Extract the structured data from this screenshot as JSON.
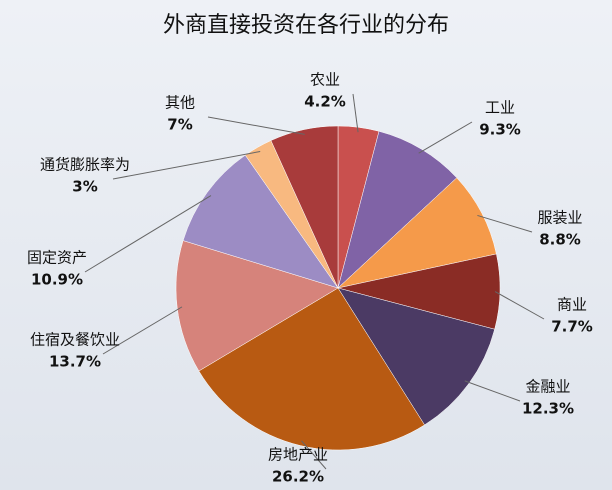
{
  "chart_data": {
    "type": "pie",
    "title": "外商直接投资在各行业的分布",
    "categories": [
      "农业",
      "工业",
      "服装业",
      "商业",
      "金融业",
      "房地产业",
      "住宿及餐饮业",
      "固定资产",
      "通货膨胀率为",
      "其他"
    ],
    "values": [
      4.2,
      9.3,
      8.8,
      7.7,
      12.3,
      26.2,
      13.7,
      10.9,
      3,
      7
    ],
    "value_labels": [
      "4.2%",
      "9.3%",
      "8.8%",
      "7.7%",
      "12.3%",
      "26.2%",
      "13.7%",
      "10.9%",
      "3%",
      "7%"
    ],
    "colors": [
      "#c9504e",
      "#8063a6",
      "#f59a4a",
      "#8a2c25",
      "#4b3a64",
      "#b85a12",
      "#d6837b",
      "#9c8cc4",
      "#f8b980",
      "#a83b3b"
    ],
    "value_label_colors": [
      "#111111",
      "#111111",
      "#111111",
      "#111111",
      "#c00000",
      "#c00000",
      "#c00000",
      "#c00000",
      "#111111",
      "#111111"
    ]
  }
}
